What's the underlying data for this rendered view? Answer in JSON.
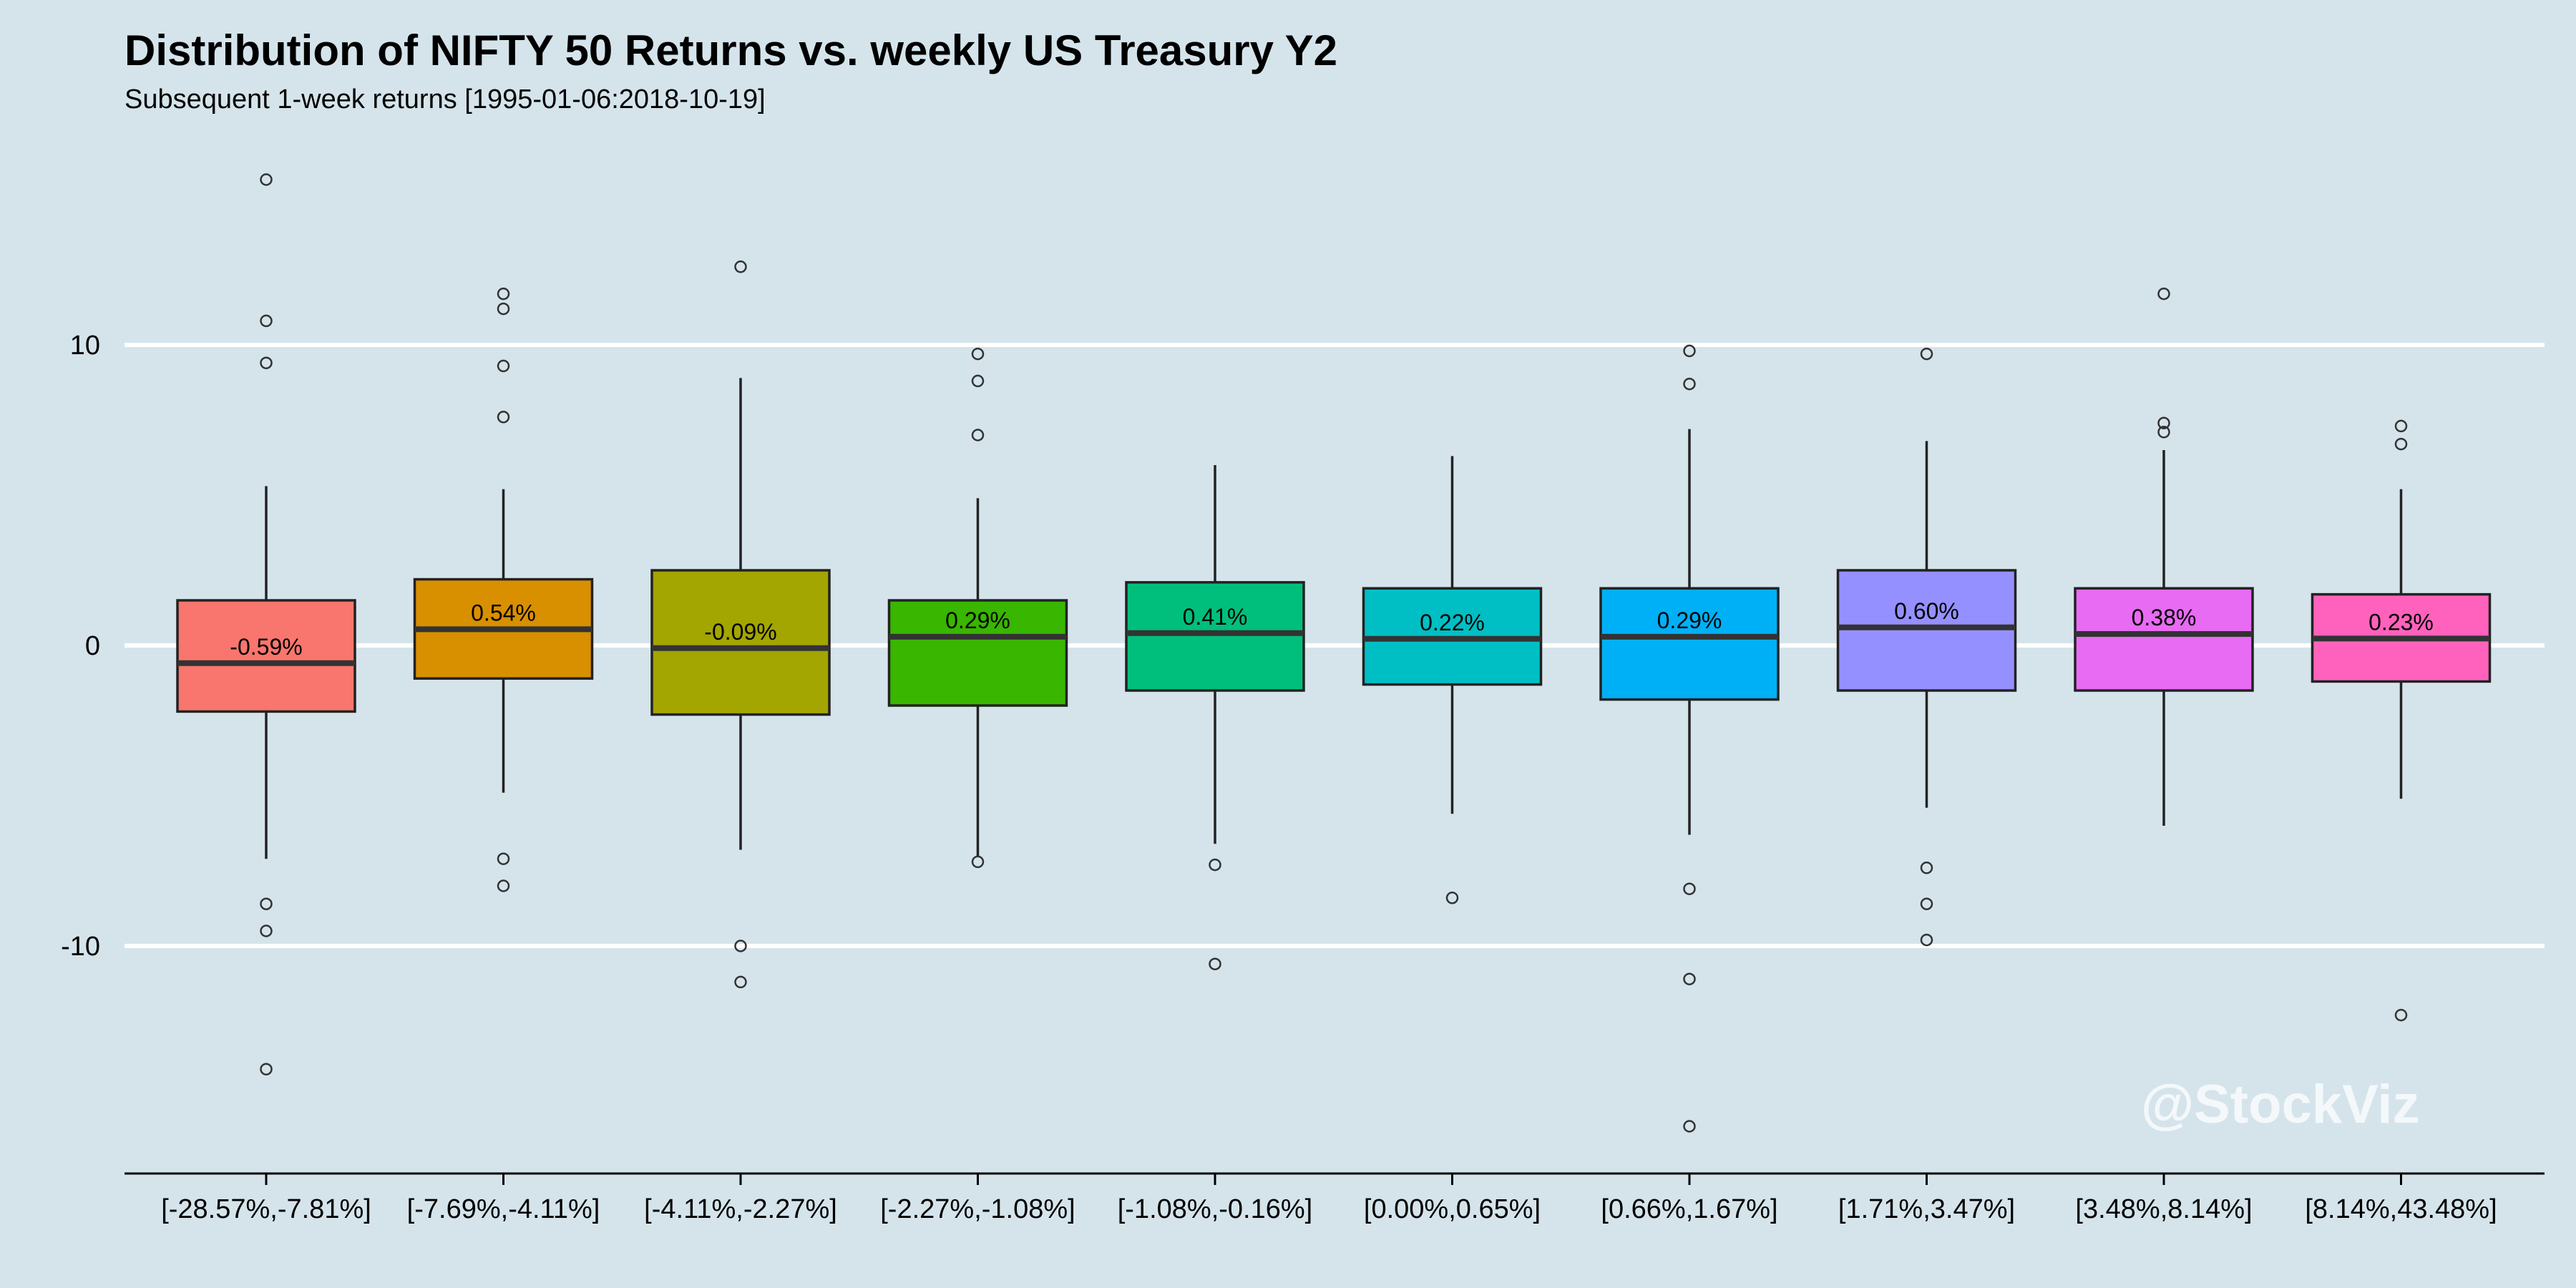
{
  "chart_data": {
    "type": "box",
    "title": "Distribution of NIFTY 50 Returns vs. weekly US Treasury Y2",
    "subtitle": "Subsequent 1-week returns [1995-01-06:2018-10-19]",
    "xlabel": "",
    "ylabel": "",
    "ylim": [
      -17.5,
      17.5
    ],
    "yticks": [
      10,
      0,
      -10
    ],
    "ytick_labels": [
      "10",
      "0",
      "-10"
    ],
    "grid": true,
    "legend": "none",
    "categories": [
      "[-28.57%,-7.81%]",
      "[-7.69%,-4.11%]",
      "[-4.11%,-2.27%]",
      "[-2.27%,-1.08%]",
      "[-1.08%,-0.16%]",
      "[0.00%,0.65%]",
      "[0.66%,1.67%]",
      "[1.71%,3.47%]",
      "[3.48%,8.14%]",
      "[8.14%,43.48%]"
    ],
    "boxes": [
      {
        "q1": -2.2,
        "median": -0.59,
        "q3": 1.5,
        "whisker_low": -7.1,
        "whisker_high": 5.3,
        "outliers": [
          15.5,
          10.8,
          9.4,
          -8.6,
          -9.5,
          -14.1
        ],
        "label": "-0.59%",
        "color": "#F8766D"
      },
      {
        "q1": -1.1,
        "median": 0.54,
        "q3": 2.2,
        "whisker_low": -4.9,
        "whisker_high": 5.2,
        "outliers": [
          11.7,
          11.2,
          9.3,
          7.6,
          -7.1,
          -8.0
        ],
        "label": "0.54%",
        "color": "#D89000"
      },
      {
        "q1": -2.3,
        "median": -0.09,
        "q3": 2.5,
        "whisker_low": -6.8,
        "whisker_high": 8.9,
        "outliers": [
          12.6,
          -10.0,
          -11.2
        ],
        "label": "-0.09%",
        "color": "#A3A500"
      },
      {
        "q1": -2.0,
        "median": 0.29,
        "q3": 1.5,
        "whisker_low": -7.0,
        "whisker_high": 4.9,
        "outliers": [
          9.7,
          8.8,
          7.0,
          -7.2
        ],
        "label": "0.29%",
        "color": "#39B600"
      },
      {
        "q1": -1.5,
        "median": 0.41,
        "q3": 2.1,
        "whisker_low": -6.6,
        "whisker_high": 6.0,
        "outliers": [
          -7.3,
          -10.6
        ],
        "label": "0.41%",
        "color": "#00BF7D"
      },
      {
        "q1": -1.3,
        "median": 0.22,
        "q3": 1.9,
        "whisker_low": -5.6,
        "whisker_high": 6.3,
        "outliers": [
          -8.4
        ],
        "label": "0.22%",
        "color": "#00BFC4"
      },
      {
        "q1": -1.8,
        "median": 0.29,
        "q3": 1.9,
        "whisker_low": -6.3,
        "whisker_high": 7.2,
        "outliers": [
          9.8,
          8.7,
          -8.1,
          -11.1,
          -16.0
        ],
        "label": "0.29%",
        "color": "#00B0F6"
      },
      {
        "q1": -1.5,
        "median": 0.6,
        "q3": 2.5,
        "whisker_low": -5.4,
        "whisker_high": 6.8,
        "outliers": [
          9.7,
          -7.4,
          -8.6,
          -9.8
        ],
        "label": "0.60%",
        "color": "#9590FF"
      },
      {
        "q1": -1.5,
        "median": 0.38,
        "q3": 1.9,
        "whisker_low": -6.0,
        "whisker_high": 6.5,
        "outliers": [
          11.7,
          7.4,
          7.1
        ],
        "label": "0.38%",
        "color": "#E76BF3"
      },
      {
        "q1": -1.2,
        "median": 0.23,
        "q3": 1.7,
        "whisker_low": -5.1,
        "whisker_high": 5.2,
        "outliers": [
          7.3,
          6.7,
          -12.3
        ],
        "label": "0.23%",
        "color": "#FF62BC"
      }
    ]
  },
  "watermark": "@StockViz"
}
